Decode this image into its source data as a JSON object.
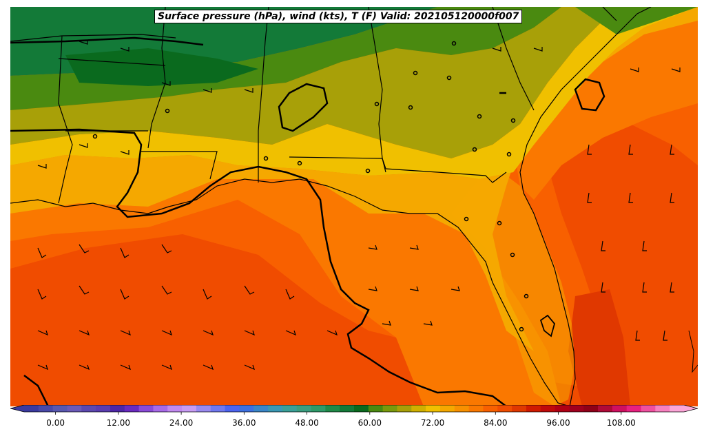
{
  "title": "Surface pressure (hPa), wind (kts), T (F) Valid: 202105120000f007",
  "colorbar": {
    "tick_labels": [
      "0.00",
      "12.00",
      "24.00",
      "36.00",
      "48.00",
      "60.00",
      "72.00",
      "84.00",
      "96.00",
      "108.00"
    ],
    "tick_values": [
      0,
      12,
      24,
      36,
      48,
      60,
      72,
      84,
      96,
      108
    ],
    "min": -6,
    "max": 120,
    "step": 3,
    "colors": [
      "#3a3aa0",
      "#4848a8",
      "#5858b0",
      "#6a5ab8",
      "#5c48b0",
      "#5a3cb0",
      "#4e26a8",
      "#6a2ac0",
      "#8a4ad8",
      "#a86ae8",
      "#c28af0",
      "#c89cf4",
      "#9a8af0",
      "#7078f0",
      "#4c64f0",
      "#3c70e0",
      "#3a86c8",
      "#3a98b4",
      "#3aa098",
      "#3a9e80",
      "#2e9a68",
      "#1f8a48",
      "#137a38",
      "#0a6a1e",
      "#4a8a10",
      "#7a9a0c",
      "#a8a008",
      "#d0b000",
      "#f0c000",
      "#f5a800",
      "#f89000",
      "#fa7800",
      "#f86000",
      "#f04c00",
      "#e03800",
      "#d01a00",
      "#c00a0a",
      "#b00014",
      "#a0001e",
      "#900018",
      "#b00a38",
      "#d01060",
      "#e82080",
      "#f050a0",
      "#f880c0",
      "#fca6d8"
    ]
  },
  "map": {
    "variable": "Temperature (F)",
    "region": "US Southeast and Gulf of Mexico",
    "overlays": [
      "surface pressure contours",
      "wind barbs",
      "state boundaries",
      "coastlines"
    ]
  }
}
